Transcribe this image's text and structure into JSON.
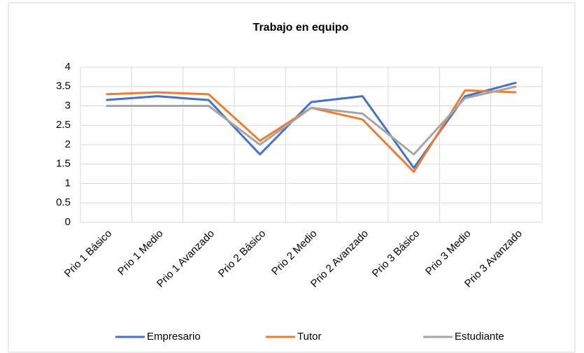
{
  "chart_data": {
    "type": "line",
    "title": "Trabajo en equipo",
    "categories": [
      "Prio 1 Básico",
      "Prio 1 Medio",
      "Prio 1 Avanzado",
      "Prio 2 Básico",
      "Prio 2 Medio",
      "Prio 2 Avanzado",
      "Prio 3 Básico",
      "Prio 3 Medio",
      "Prio 3 Avanzado"
    ],
    "series": [
      {
        "name": "Empresario",
        "color": "#4472c4",
        "values": [
          3.15,
          3.25,
          3.15,
          1.75,
          3.1,
          3.25,
          1.4,
          3.25,
          3.6
        ]
      },
      {
        "name": "Tutor",
        "color": "#ed7d31",
        "values": [
          3.3,
          3.35,
          3.3,
          2.1,
          2.95,
          2.65,
          1.3,
          3.4,
          3.35
        ]
      },
      {
        "name": "Estudiante",
        "color": "#a5a5a5",
        "values": [
          3.0,
          3.0,
          3.0,
          2.0,
          2.95,
          2.8,
          1.75,
          3.2,
          3.5
        ]
      }
    ],
    "ylim": [
      0,
      4
    ],
    "yticks": [
      0,
      0.5,
      1,
      1.5,
      2,
      2.5,
      3,
      3.5,
      4
    ],
    "grid": true,
    "legend": "bottom"
  }
}
